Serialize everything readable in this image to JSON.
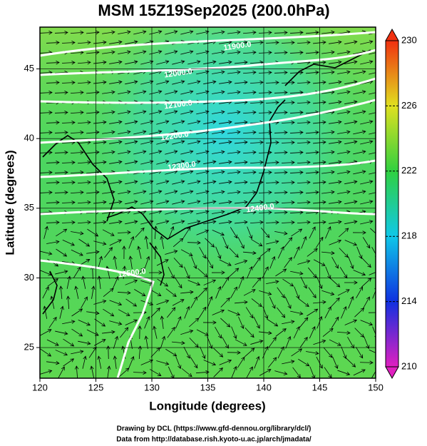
{
  "chart_data": {
    "type": "streamline-map",
    "title": "MSM 15Z19Sep2025 (200.0hPa)",
    "x_label": "Longitude (degrees)",
    "y_label": "Latitude  (degrees)",
    "xlim": [
      120,
      150
    ],
    "xticks": [
      120,
      125,
      130,
      135,
      140,
      145,
      150
    ],
    "ylim": [
      22.8,
      48
    ],
    "yticks": [
      25,
      30,
      35,
      40,
      45
    ],
    "grid": true,
    "contour_labels": [
      "11900.0",
      "12000.0",
      "12100.0",
      "12200.0",
      "12300.0",
      "12400.0",
      "12500.0"
    ],
    "colorbar": {
      "lim": [
        210,
        230
      ],
      "ticks": [
        210,
        214,
        218,
        222,
        226,
        230
      ],
      "colors": [
        "#e020c0",
        "#1030e0",
        "#10c8e8",
        "#30d040",
        "#e0e020",
        "#f03010"
      ]
    },
    "credits": [
      "Drawing by DCL (https://www.gfd-dennou.org/library/dcl/)",
      "Data from http://database.rish.kyoto-u.ac.jp/arch/jmadata/"
    ]
  }
}
